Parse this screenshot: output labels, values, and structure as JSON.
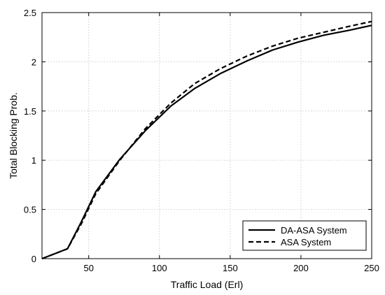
{
  "chart_data": {
    "type": "line",
    "xlabel": "Traffic Load (Erl)",
    "ylabel": "Total Blocking Prob.",
    "xlim": [
      17,
      250
    ],
    "ylim": [
      0,
      2.5
    ],
    "xticks": [
      50,
      100,
      150,
      200,
      250
    ],
    "yticks": [
      0,
      0.5,
      1,
      1.5,
      2,
      2.5
    ],
    "xtick_labels": [
      "50",
      "100",
      "150",
      "200",
      "250"
    ],
    "ytick_labels": [
      "0",
      "0.5",
      "1",
      "1.5",
      "2",
      "2.5"
    ],
    "grid": true,
    "legend_position": "bottom-right",
    "series": [
      {
        "name": "DA-ASA System",
        "style": "solid",
        "color": "#000000",
        "x": [
          17,
          35,
          45,
          55,
          72,
          90,
          108,
          125,
          143,
          162,
          180,
          198,
          216,
          234,
          250
        ],
        "y": [
          0,
          0.1,
          0.38,
          0.68,
          1.01,
          1.3,
          1.55,
          1.73,
          1.88,
          2.01,
          2.12,
          2.2,
          2.27,
          2.32,
          2.37
        ]
      },
      {
        "name": "ASA System",
        "style": "dashed",
        "color": "#000000",
        "x": [
          17,
          35,
          45,
          55,
          72,
          90,
          108,
          125,
          143,
          162,
          180,
          198,
          216,
          234,
          250
        ],
        "y": [
          0,
          0.1,
          0.36,
          0.66,
          1.0,
          1.32,
          1.58,
          1.78,
          1.93,
          2.06,
          2.16,
          2.24,
          2.3,
          2.36,
          2.41
        ]
      }
    ]
  }
}
